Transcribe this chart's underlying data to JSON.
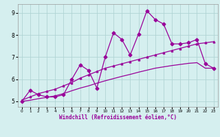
{
  "xlabel": "Windchill (Refroidissement éolien,°C)",
  "bg_color": "#d5efef",
  "grid_color": "#b0d4d4",
  "line_color": "#990099",
  "xlim": [
    -0.5,
    23.5
  ],
  "ylim": [
    4.75,
    9.4
  ],
  "x_ticks": [
    0,
    1,
    2,
    3,
    4,
    5,
    6,
    7,
    8,
    9,
    10,
    11,
    12,
    13,
    14,
    15,
    16,
    17,
    18,
    19,
    20,
    21,
    22,
    23
  ],
  "y_ticks": [
    5,
    6,
    7,
    8,
    9
  ],
  "series1_x": [
    0,
    1,
    2,
    3,
    4,
    5,
    6,
    7,
    8,
    9,
    10,
    11,
    12,
    13,
    14,
    15,
    16,
    17,
    18,
    19,
    20,
    21,
    22,
    23
  ],
  "series1_y": [
    5.0,
    5.5,
    5.3,
    5.2,
    5.2,
    5.3,
    6.0,
    6.65,
    6.4,
    5.6,
    7.0,
    8.1,
    7.8,
    7.1,
    8.05,
    9.1,
    8.7,
    8.5,
    7.6,
    7.6,
    7.65,
    7.8,
    6.7,
    6.5
  ],
  "series2_x": [
    0,
    1,
    2,
    3,
    4,
    5,
    6,
    7,
    8,
    9,
    10,
    11,
    12,
    13,
    14,
    15,
    16,
    17,
    18,
    19,
    20,
    21,
    22,
    23
  ],
  "series2_y": [
    5.05,
    5.2,
    5.35,
    5.45,
    5.55,
    5.7,
    5.85,
    6.05,
    6.2,
    6.35,
    6.5,
    6.6,
    6.7,
    6.8,
    6.9,
    7.0,
    7.1,
    7.2,
    7.3,
    7.4,
    7.5,
    7.6,
    7.65,
    7.7
  ],
  "series3_x": [
    0,
    1,
    2,
    3,
    4,
    5,
    6,
    7,
    8,
    9,
    10,
    11,
    12,
    13,
    14,
    15,
    16,
    17,
    18,
    19,
    20,
    21,
    22,
    23
  ],
  "series3_y": [
    5.0,
    5.05,
    5.12,
    5.18,
    5.25,
    5.35,
    5.48,
    5.6,
    5.7,
    5.82,
    5.93,
    6.03,
    6.13,
    6.22,
    6.32,
    6.41,
    6.5,
    6.56,
    6.62,
    6.67,
    6.72,
    6.75,
    6.5,
    6.5
  ]
}
